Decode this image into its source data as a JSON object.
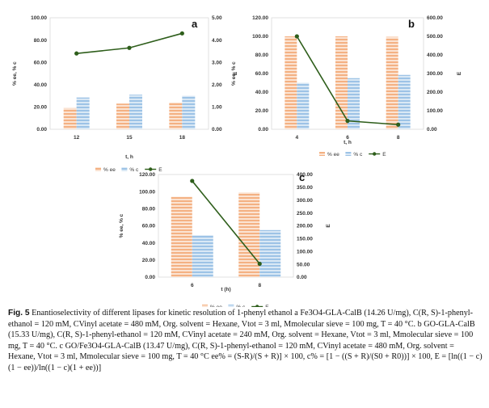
{
  "chart_data": [
    {
      "panel": "a",
      "type": "bar",
      "categories": [
        "12",
        "15",
        "18"
      ],
      "xlabel": "t, h",
      "ylabel": "% ee, % c",
      "y2label": "E",
      "ylim": [
        0,
        100
      ],
      "yticks": [
        "0.00",
        "20.00",
        "40.00",
        "60.00",
        "80.00",
        "100.00"
      ],
      "y2lim": [
        0,
        5
      ],
      "y2ticks": [
        "0.00",
        "1.00",
        "2.00",
        "3.00",
        "4.00",
        "5.00"
      ],
      "series": [
        {
          "name": "% ee",
          "kind": "bar",
          "color": "#f4b183",
          "values": [
            19,
            23,
            24
          ]
        },
        {
          "name": "% c",
          "kind": "bar",
          "color": "#9dc3e6",
          "values": [
            28.5,
            31,
            30
          ]
        },
        {
          "name": "E",
          "kind": "line",
          "axis": "y2",
          "color": "#2e5e1b",
          "values": [
            3.4,
            3.65,
            4.3
          ]
        }
      ],
      "legend": "bottom"
    },
    {
      "panel": "b",
      "type": "bar",
      "categories": [
        "4",
        "6",
        "8"
      ],
      "xlabel": "t, h",
      "ylabel": "% ee, % c",
      "y2label": "E",
      "ylim": [
        0,
        120
      ],
      "yticks": [
        "0.00",
        "20.00",
        "40.00",
        "60.00",
        "80.00",
        "100.00",
        "120.00"
      ],
      "y2lim": [
        0,
        600
      ],
      "y2ticks": [
        "0.00",
        "100.00",
        "200.00",
        "300.00",
        "400.00",
        "500.00",
        "600.00"
      ],
      "series": [
        {
          "name": "% ee",
          "kind": "bar",
          "color": "#f4b183",
          "values": [
            100,
            100,
            99.5
          ]
        },
        {
          "name": "% c",
          "kind": "bar",
          "color": "#9dc3e6",
          "values": [
            50,
            55,
            58.5
          ]
        },
        {
          "name": "E",
          "kind": "line",
          "axis": "y2",
          "color": "#2e5e1b",
          "values": [
            500,
            45,
            25
          ]
        }
      ],
      "legend": "bottom"
    },
    {
      "panel": "c",
      "type": "bar",
      "categories": [
        "6",
        "8"
      ],
      "xlabel": "t (h)",
      "ylabel": "% ee, % c",
      "y2label": "E",
      "ylim": [
        0,
        120
      ],
      "yticks": [
        "0.00",
        "20.00",
        "40.00",
        "60.00",
        "80.00",
        "100.00",
        "120.00"
      ],
      "y2lim": [
        0,
        400
      ],
      "y2ticks": [
        "0.00",
        "50.00",
        "100.00",
        "150.00",
        "200.00",
        "250.00",
        "300.00",
        "350.00",
        "400.00"
      ],
      "series": [
        {
          "name": "% ee",
          "kind": "bar",
          "color": "#f4b183",
          "values": [
            94,
            99
          ]
        },
        {
          "name": "% c",
          "kind": "bar",
          "color": "#9dc3e6",
          "values": [
            49,
            55
          ]
        },
        {
          "name": "E",
          "kind": "line",
          "axis": "y2",
          "color": "#2e5e1b",
          "values": [
            375,
            52
          ]
        }
      ],
      "legend": "bottom"
    }
  ],
  "caption": {
    "fig_label": "Fig. 5",
    "text": "Enantioselectivity of different lipases for kinetic resolution of 1-phenyl ethanol a Fe3O4-GLA-CalB (14.26 U/mg), C(R, S)-1-phenyl-ethanol = 120 mM, CVinyl acetate = 480 mM, Org. solvent = Hexane, Vtot = 3 ml, Mmolecular sieve = 100 mg, T = 40 °C. b GO-GLA-CalB (15.33 U/mg), C(R, S)-1-phenyl-ethanol = 120 mM, CVinyl acetate = 240 mM, Org. solvent = Hexane, Vtot = 3 ml, Mmolecular sieve = 100 mg, T = 40 °C. c GO/Fe3O4-GLA-CalB (13.47 U/mg), C(R, S)-1-phenyl-ethanol = 120 mM, CVinyl acetate = 480 mM, Org. solvent = Hexane, Vtot = 3 ml, Mmolecular sieve = 100 mg, T = 40 °C ee% = (S-R)/(S + R)] × 100, c% = [1 − ((S + R)/(S0 + R0))] × 100, E = [ln((1 − c)(1 − ee))/ln((1 − c)(1 + ee))]"
  }
}
